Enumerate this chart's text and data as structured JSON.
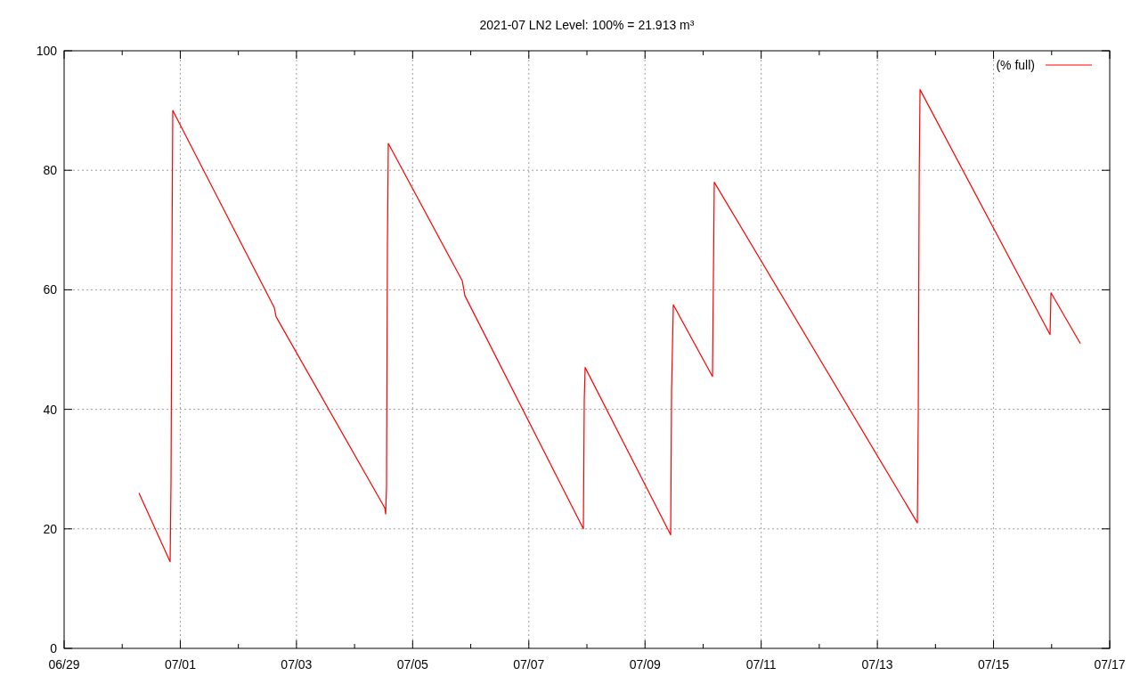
{
  "chart_data": {
    "type": "line",
    "title": "2021-07 LN2 Level: 100% = 21.913 m³",
    "xlim": [
      "2021-06-29",
      "2021-07-17"
    ],
    "xticks": [
      {
        "value": "2021-06-29",
        "label": "06/29"
      },
      {
        "value": "2021-06-30",
        "label": null
      },
      {
        "value": "2021-07-01",
        "label": "07/01"
      },
      {
        "value": "2021-07-02",
        "label": null
      },
      {
        "value": "2021-07-03",
        "label": "07/03"
      },
      {
        "value": "2021-07-04",
        "label": null
      },
      {
        "value": "2021-07-05",
        "label": "07/05"
      },
      {
        "value": "2021-07-06",
        "label": null
      },
      {
        "value": "2021-07-07",
        "label": "07/07"
      },
      {
        "value": "2021-07-08",
        "label": null
      },
      {
        "value": "2021-07-09",
        "label": "07/09"
      },
      {
        "value": "2021-07-10",
        "label": null
      },
      {
        "value": "2021-07-11",
        "label": "07/11"
      },
      {
        "value": "2021-07-12",
        "label": null
      },
      {
        "value": "2021-07-13",
        "label": "07/13"
      },
      {
        "value": "2021-07-14",
        "label": null
      },
      {
        "value": "2021-07-15",
        "label": "07/15"
      },
      {
        "value": "2021-07-16",
        "label": null
      },
      {
        "value": "2021-07-17",
        "label": "07/17"
      }
    ],
    "ylim": [
      0,
      100
    ],
    "yticks": [
      0,
      20,
      40,
      60,
      80,
      100
    ],
    "grid": true,
    "legend": "top right",
    "line_style": "solid",
    "series": [
      {
        "name": "(% full)",
        "color": "#ff0000",
        "x": [
          "2021-06-30T06:55",
          "2021-06-30T19:48",
          "2021-06-30T20:10",
          "2021-06-30T20:31",
          "2021-06-30T20:53",
          "2021-07-02T14:51",
          "2021-07-02T15:34",
          "2021-07-04T12:29",
          "2021-07-04T12:50",
          "2021-07-04T13:12",
          "2021-07-04T13:34",
          "2021-07-04T13:56",
          "2021-07-05T20:30",
          "2021-07-05T21:36",
          "2021-07-07T22:32",
          "2021-07-07T22:54",
          "2021-07-07T23:16",
          "2021-07-09T10:36",
          "2021-07-09T10:58",
          "2021-07-09T11:42",
          "2021-07-10T03:53",
          "2021-07-10T04:15",
          "2021-07-10T04:37",
          "2021-07-13T16:32",
          "2021-07-13T16:54",
          "2021-07-13T17:17",
          "2021-07-13T17:38",
          "2021-07-15T23:21",
          "2021-07-15T23:44",
          "2021-07-16T11:53"
        ],
        "values": [
          26,
          14.5,
          28,
          63,
          90,
          57,
          55.5,
          23.5,
          22.5,
          27,
          67,
          84.5,
          61.5,
          59,
          20,
          41.5,
          47,
          19,
          43,
          57.5,
          45.5,
          62,
          78,
          21,
          39,
          78.5,
          93.5,
          52.5,
          59.5,
          51
        ]
      }
    ]
  }
}
